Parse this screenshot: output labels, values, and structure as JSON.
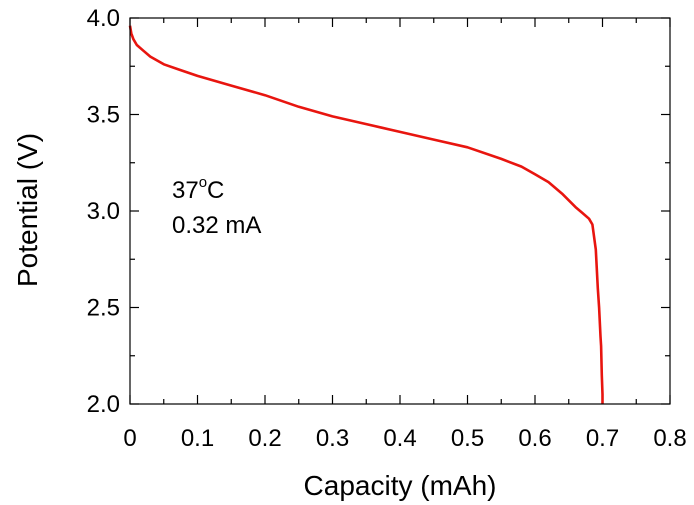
{
  "chart_data": {
    "type": "line",
    "title": "",
    "xlabel": "Capacity (mAh)",
    "ylabel": "Potential (V)",
    "xlim": [
      0,
      0.8
    ],
    "ylim": [
      2.0,
      4.0
    ],
    "x_ticks": [
      "0",
      "0.1",
      "0.2",
      "0.3",
      "0.4",
      "0.5",
      "0.6",
      "0.7",
      "0.8"
    ],
    "y_ticks": [
      "2.0",
      "2.5",
      "3.0",
      "3.5",
      "4.0"
    ],
    "grid": false,
    "annotation": {
      "temperature_value": "37",
      "temperature_sup": "o",
      "temperature_unit": "C",
      "current": "0.32 mA"
    },
    "series": [
      {
        "color": "#e8150f",
        "x": [
          0.0,
          0.002,
          0.005,
          0.01,
          0.02,
          0.03,
          0.05,
          0.075,
          0.1,
          0.15,
          0.2,
          0.25,
          0.3,
          0.35,
          0.4,
          0.45,
          0.5,
          0.55,
          0.58,
          0.6,
          0.62,
          0.64,
          0.66,
          0.67,
          0.68,
          0.685,
          0.69,
          0.693,
          0.695,
          0.697,
          0.698,
          0.699,
          0.7,
          0.7
        ],
        "y": [
          3.96,
          3.92,
          3.89,
          3.86,
          3.83,
          3.8,
          3.76,
          3.73,
          3.7,
          3.65,
          3.6,
          3.54,
          3.49,
          3.45,
          3.41,
          3.37,
          3.33,
          3.27,
          3.23,
          3.19,
          3.15,
          3.09,
          3.02,
          2.99,
          2.96,
          2.93,
          2.8,
          2.6,
          2.5,
          2.35,
          2.3,
          2.15,
          2.05,
          2.0
        ]
      }
    ]
  }
}
